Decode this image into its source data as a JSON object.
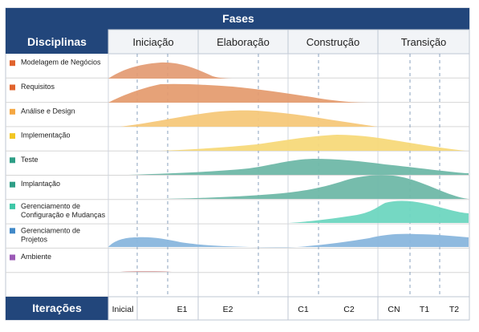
{
  "header": {
    "title": "Fases",
    "disciplines_label": "Disciplinas",
    "iterations_label": "Iterações"
  },
  "phases": [
    "Iniciação",
    "Elaboração",
    "Construção",
    "Transição"
  ],
  "iterations": [
    "Inicial",
    "E1",
    "E2",
    "C1",
    "C2",
    "CN",
    "T1",
    "T2"
  ],
  "disciplines": [
    {
      "lines": [
        "Modelagem de Negócios"
      ],
      "color": "#e0632d"
    },
    {
      "lines": [
        "Requisitos"
      ],
      "color": "#e0632d"
    },
    {
      "lines": [
        "Análise e Design"
      ],
      "color": "#f5a742"
    },
    {
      "lines": [
        "Implementação"
      ],
      "color": "#f2c624"
    },
    {
      "lines": [
        "Teste"
      ],
      "color": "#2e9e86"
    },
    {
      "lines": [
        "Implantação"
      ],
      "color": "#2e9e86"
    },
    {
      "lines": [
        "Gerenciamento de",
        "Configuração e Mudanças"
      ],
      "color": "#3ec7a7"
    },
    {
      "lines": [
        "Gerenciamento de",
        "Projetos"
      ],
      "color": "#4189c8"
    },
    {
      "lines": [
        "Ambiente"
      ],
      "color": "#9b59b6"
    },
    {
      "lines": [],
      "color": ""
    }
  ],
  "colors": {
    "header_bg": "#22467b",
    "grid_line": "#d6d6d6",
    "dash_line": "#8aa0bd",
    "curve_business": "#e39a72",
    "curve_requirements": "#e49a6c",
    "curve_design": "#f5c87a",
    "curve_impl": "#f7d97a",
    "curve_test": "#6fb8a8",
    "curve_deploy": "#6fb8a8",
    "curve_config": "#6ed6c0",
    "curve_pm": "#89b6dd",
    "curve_env": "#d79f9f"
  }
}
